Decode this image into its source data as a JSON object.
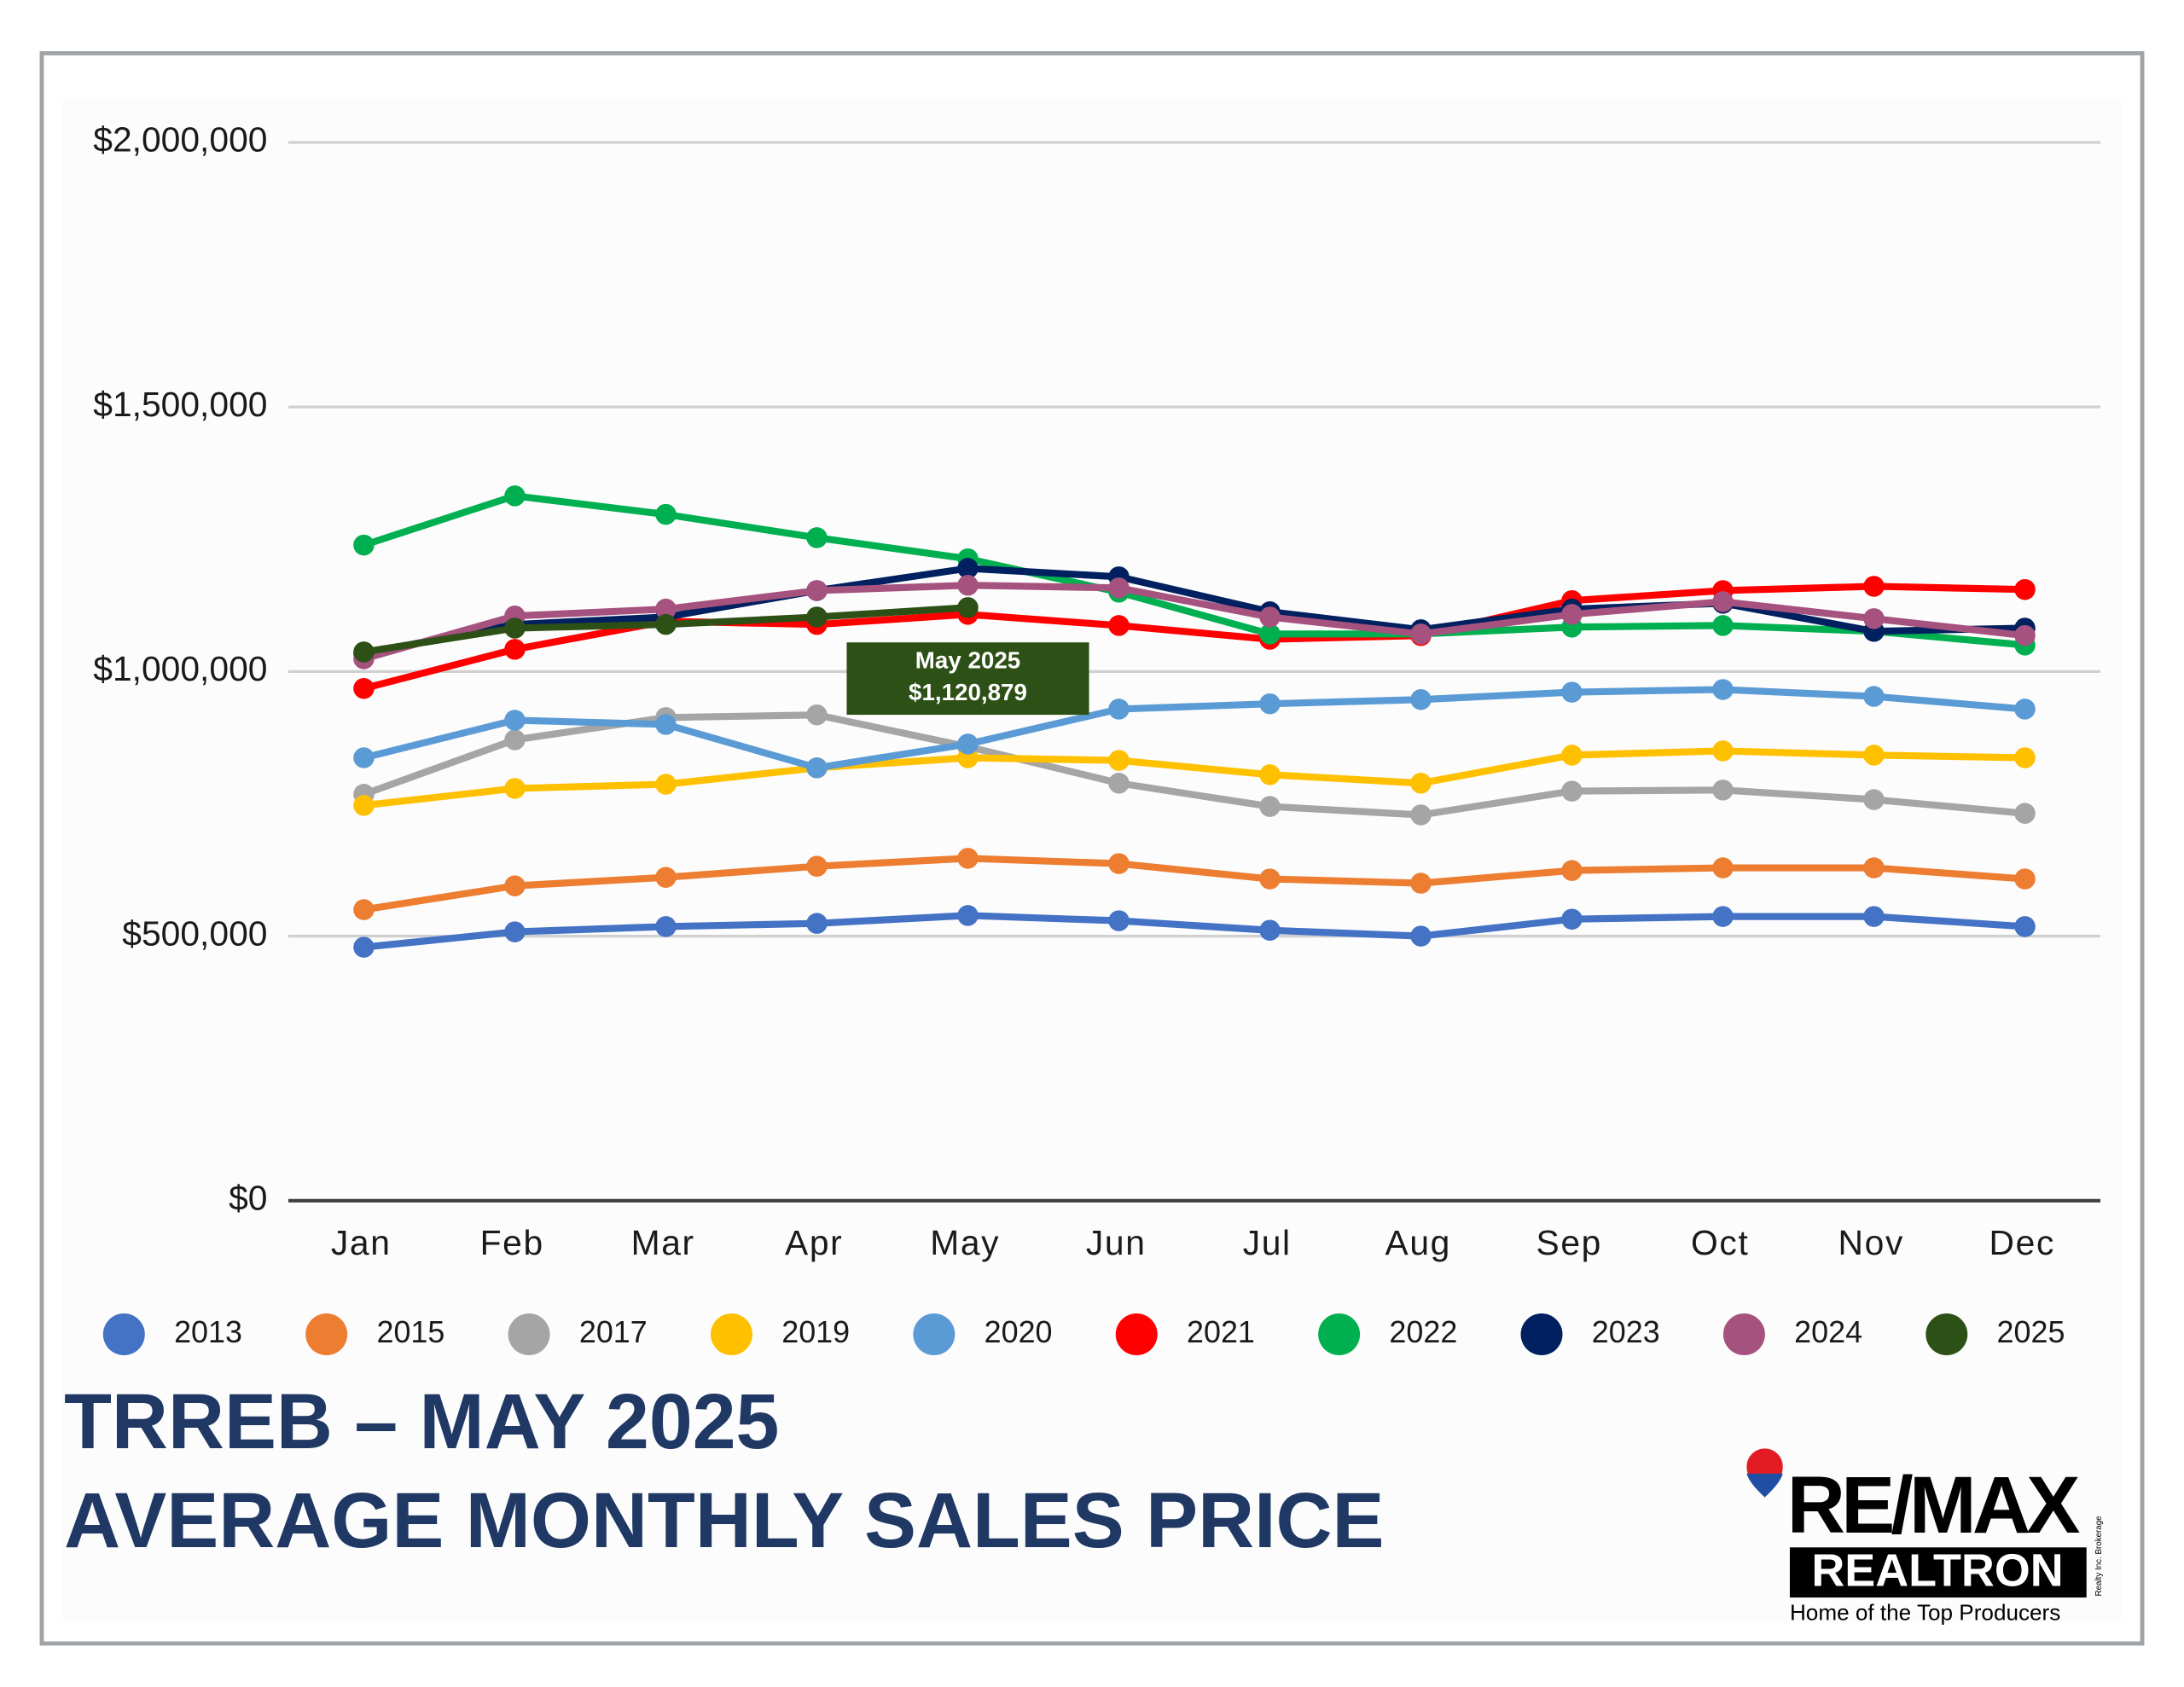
{
  "chart_data": {
    "type": "line",
    "title": "TRREB – MAY 2025",
    "subtitle": "AVERAGE MONTHLY SALES PRICE",
    "categories": [
      "Jan",
      "Feb",
      "Mar",
      "Apr",
      "May",
      "Jun",
      "Jul",
      "Aug",
      "Sep",
      "Oct",
      "Nov",
      "Dec"
    ],
    "ylim": [
      0,
      2000000
    ],
    "yticks": [
      {
        "value": 0,
        "label": "$0"
      },
      {
        "value": 500000,
        "label": "$500,000"
      },
      {
        "value": 1000000,
        "label": "$1,000,000"
      },
      {
        "value": 1500000,
        "label": "$1,500,000"
      },
      {
        "value": 2000000,
        "label": "$2,000,000"
      }
    ],
    "grid": true,
    "legend": "bottom",
    "series": [
      {
        "name": "2013",
        "color": "#4472c4",
        "values": [
          479000,
          508000,
          518000,
          524000,
          539000,
          529000,
          511000,
          500000,
          532000,
          537000,
          537000,
          518000
        ]
      },
      {
        "name": "2015",
        "color": "#ed7d31",
        "values": [
          550000,
          595000,
          611000,
          632000,
          647000,
          637000,
          608000,
          600000,
          624000,
          629000,
          629000,
          608000
        ]
      },
      {
        "name": "2017",
        "color": "#a5a5a5",
        "values": [
          768000,
          871000,
          913000,
          918000,
          858000,
          789000,
          745000,
          729000,
          774000,
          776000,
          758000,
          732000
        ]
      },
      {
        "name": "2019",
        "color": "#ffc000",
        "values": [
          747000,
          779000,
          787000,
          818000,
          837000,
          832000,
          805000,
          789000,
          842000,
          850000,
          842000,
          837000
        ]
      },
      {
        "name": "2020",
        "color": "#5b9bd5",
        "values": [
          837000,
          908000,
          900000,
          818000,
          863000,
          929000,
          939000,
          947000,
          961000,
          966000,
          953000,
          929000
        ]
      },
      {
        "name": "2021",
        "color": "#ff0000",
        "values": [
          968000,
          1042000,
          1095000,
          1089000,
          1108000,
          1087000,
          1061000,
          1068000,
          1134000,
          1153000,
          1161000,
          1155000
        ]
      },
      {
        "name": "2022",
        "color": "#00b050",
        "values": [
          1239000,
          1332000,
          1297000,
          1253000,
          1213000,
          1150000,
          1071000,
          1071000,
          1084000,
          1087000,
          1076000,
          1050000
        ]
      },
      {
        "name": "2023",
        "color": "#002060",
        "values": [
          1034000,
          1089000,
          1103000,
          1153000,
          1195000,
          1179000,
          1113000,
          1079000,
          1118000,
          1129000,
          1076000,
          1082000
        ]
      },
      {
        "name": "2024",
        "color": "#a5527e",
        "values": [
          1024000,
          1105000,
          1118000,
          1153000,
          1163000,
          1158000,
          1103000,
          1071000,
          1108000,
          1132000,
          1100000,
          1068000
        ]
      },
      {
        "name": "2025",
        "color": "#2d5016",
        "values": [
          1037000,
          1082000,
          1089000,
          1103000,
          1120879,
          null,
          null,
          null,
          null,
          null,
          null,
          null
        ]
      }
    ],
    "annotation": {
      "title": "May 2025",
      "label": "$1,120,879",
      "series": 9,
      "index": 4
    }
  },
  "logo": {
    "brand": "RE/MAX",
    "office": "REALTRON",
    "fine_print": "Realty Inc. Brokerage",
    "tagline": "Home of the Top Producers"
  }
}
